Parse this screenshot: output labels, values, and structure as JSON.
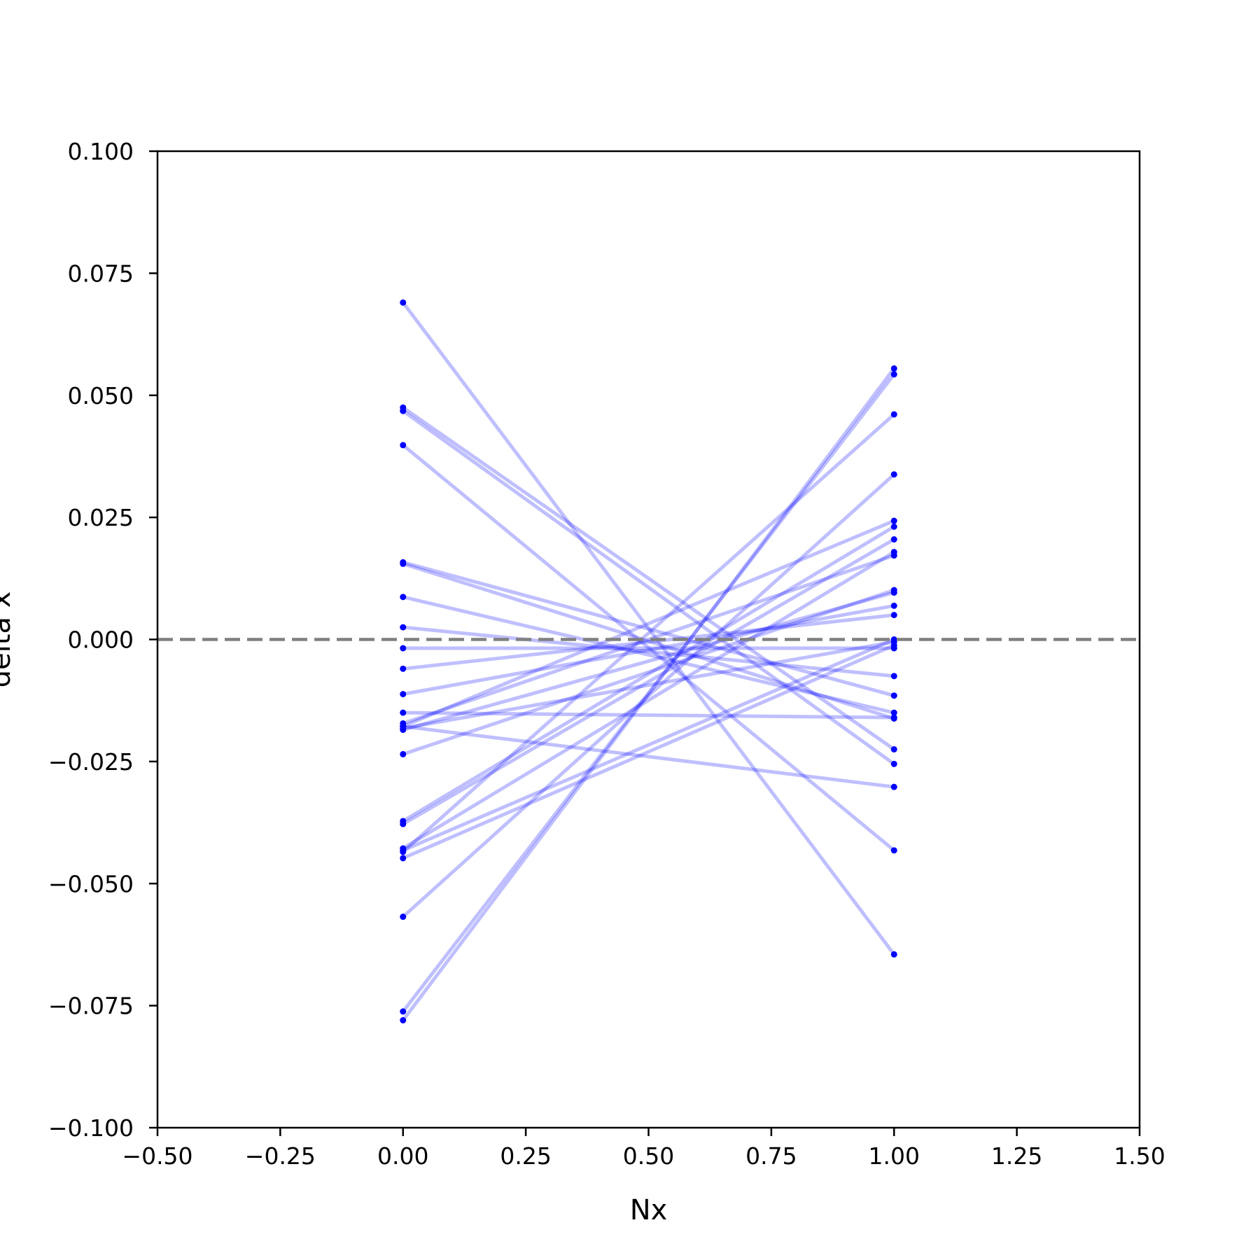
{
  "chart_data": {
    "type": "line",
    "title": "",
    "xlabel": "Nx",
    "ylabel": "delta x",
    "xlim": [
      -0.5,
      1.5
    ],
    "ylim": [
      -0.1,
      0.1
    ],
    "xticks": [
      "−0.50",
      "−0.25",
      "0.00",
      "0.25",
      "0.50",
      "0.75",
      "1.00",
      "1.25",
      "1.50"
    ],
    "yticks": [
      "−0.100",
      "−0.075",
      "−0.050",
      "−0.025",
      "0.000",
      "0.025",
      "0.050",
      "0.075",
      "0.100"
    ],
    "grid": false,
    "legend": "none",
    "reference_line": {
      "y": 0.0,
      "style": "dashed",
      "color": "#808080"
    },
    "series_color": "#0000ff",
    "line_alpha": 0.25,
    "segments": [
      [
        0.069,
        -0.0645
      ],
      [
        0.0475,
        -0.0225
      ],
      [
        0.0468,
        -0.0255
      ],
      [
        0.0398,
        -0.0432
      ],
      [
        0.0158,
        -0.0115
      ],
      [
        0.0155,
        -0.0162
      ],
      [
        0.0087,
        -0.015
      ],
      [
        0.0025,
        -0.0075
      ],
      [
        -0.0018,
        -0.0018
      ],
      [
        -0.006,
        0.005
      ],
      [
        -0.0112,
        0.0069
      ],
      [
        -0.015,
        -0.016
      ],
      [
        -0.0172,
        0.0172
      ],
      [
        -0.0178,
        0.0243
      ],
      [
        -0.0185,
        0.0096
      ],
      [
        -0.0235,
        0.0101
      ],
      [
        -0.0372,
        0.0231
      ],
      [
        -0.0378,
        0.0205
      ],
      [
        -0.0428,
        0.0179
      ],
      [
        -0.0432,
        0.0
      ],
      [
        -0.0448,
        -0.0012
      ],
      [
        -0.0568,
        0.0338
      ],
      [
        -0.0762,
        0.0543
      ],
      [
        -0.078,
        0.0555
      ],
      [
        -0.0435,
        0.0461
      ],
      [
        -0.0178,
        -0.0302
      ],
      [
        -0.0182,
        -0.0005
      ]
    ]
  }
}
